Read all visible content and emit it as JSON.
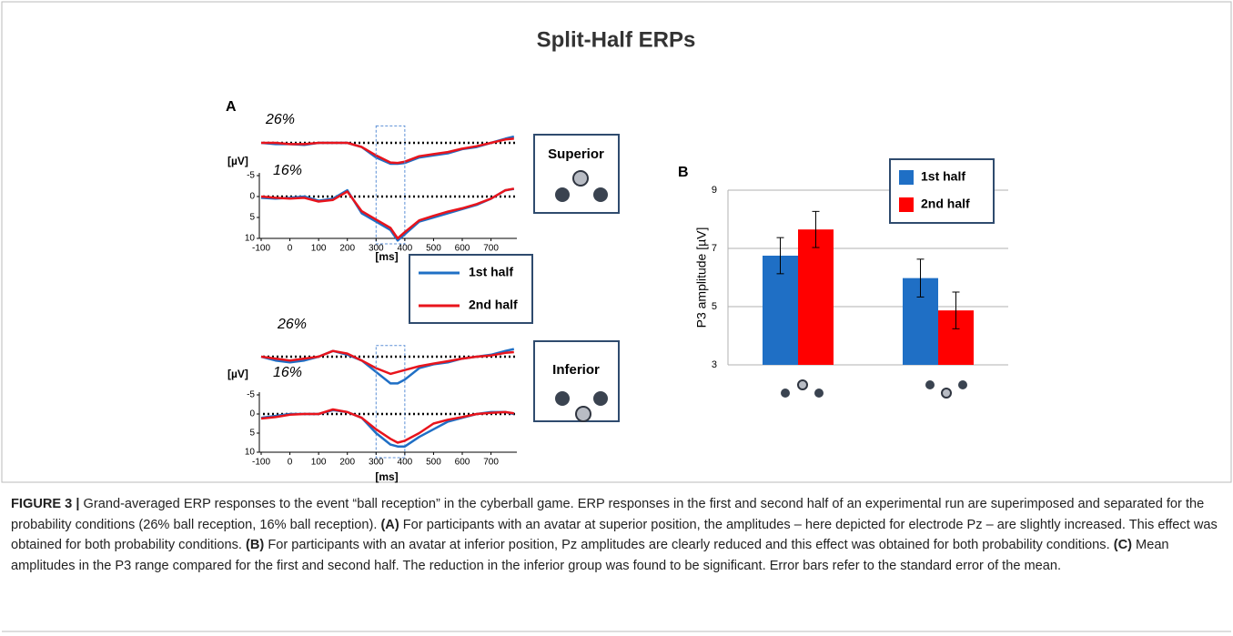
{
  "title": "Split-Half ERPs",
  "panel_labels": [
    "A",
    "B"
  ],
  "icon_labels": [
    "Superior",
    "Inferior"
  ],
  "caption": {
    "figure_label": "FIGURE 3 |",
    "intro": "Grand-averaged ERP responses to the event “ball reception” in the cyberball game. ERP responses in the first and second half of an experimental run are superimposed and separated for the probability conditions (26% ball reception, 16% ball reception).",
    "items": [
      {
        "label": "(A)",
        "text": "For participants with an avatar at superior position, the amplitudes – here depicted for electrode Pz – are slightly increased. This effect was obtained for both probability conditions."
      },
      {
        "label": "(B)",
        "text": "For participants with an avatar at inferior position, Pz amplitudes are clearly reduced and this effect was obtained for both probability conditions."
      },
      {
        "label": "(C)",
        "text": "Mean amplitudes in the P3 range compared for the first and second half. The reduction in the inferior group was found to be significant. Error bars refer to the standard error of the mean."
      }
    ]
  },
  "chart_data": [
    {
      "type": "line",
      "label": "26%",
      "x": [
        -100,
        -50,
        0,
        50,
        100,
        150,
        200,
        250,
        300,
        350,
        375,
        400,
        450,
        500,
        550,
        600,
        650,
        700,
        750,
        780
      ],
      "series": [
        {
          "color": "#1f6fc5",
          "values": [
            0,
            0.3,
            0.3,
            0.5,
            0,
            0,
            0,
            1,
            3.5,
            5,
            5,
            4.8,
            3.5,
            3,
            2.5,
            1.5,
            1,
            0,
            -1,
            -1.5
          ]
        },
        {
          "color": "#e8141c",
          "values": [
            0,
            0,
            0.3,
            0.3,
            0,
            0,
            0,
            1,
            3,
            4.7,
            4.8,
            4.5,
            3.2,
            2.7,
            2.2,
            1.4,
            0.8,
            0,
            -0.8,
            -1
          ]
        }
      ],
      "xlim": [
        -100,
        790
      ],
      "ylim": [
        -6,
        10
      ]
    },
    {
      "type": "line",
      "label": "16%",
      "y_label": "[µV]",
      "x_label": "[ms]",
      "x": [
        -100,
        -50,
        0,
        50,
        100,
        150,
        200,
        250,
        300,
        350,
        375,
        400,
        450,
        500,
        550,
        600,
        650,
        700,
        750,
        780
      ],
      "series": [
        {
          "name": "1st half",
          "color": "#1f6fc5",
          "values": [
            0.3,
            0.5,
            0.3,
            0,
            1,
            0.5,
            -1.5,
            4,
            6,
            8,
            10.5,
            9,
            6,
            5,
            4,
            3,
            2,
            0.5,
            -1.5,
            -1.8
          ]
        },
        {
          "name": "2nd half",
          "color": "#e8141c",
          "values": [
            0,
            0.3,
            0.5,
            0.3,
            1.2,
            0.8,
            -1.2,
            3.5,
            5.5,
            7.5,
            10,
            8.5,
            5.7,
            4.6,
            3.6,
            2.8,
            1.8,
            0.5,
            -1.5,
            -1.9
          ]
        }
      ],
      "xlim": [
        -100,
        790
      ],
      "ylim": [
        -6,
        10
      ],
      "xticks": [
        -100,
        0,
        100,
        200,
        300,
        400,
        500,
        600,
        700
      ],
      "yticks": [
        -5,
        0,
        5,
        10
      ],
      "window": [
        300,
        400
      ]
    },
    {
      "type": "line",
      "label": "26%",
      "x": [
        -100,
        -50,
        0,
        50,
        100,
        150,
        200,
        250,
        300,
        350,
        375,
        400,
        450,
        500,
        550,
        600,
        650,
        700,
        750,
        780
      ],
      "series": [
        {
          "color": "#1f6fc5",
          "values": [
            0,
            1,
            1.5,
            1,
            0,
            -1.5,
            -0.5,
            1,
            4,
            7,
            7,
            6,
            3,
            2,
            1.5,
            0.5,
            0,
            -0.5,
            -1.5,
            -2
          ]
        },
        {
          "color": "#e8141c",
          "values": [
            0,
            0.5,
            1,
            0.5,
            0,
            -1.5,
            -0.8,
            1,
            3,
            4.5,
            4,
            3.5,
            2.5,
            1.8,
            1.2,
            0.5,
            0,
            -0.3,
            -1,
            -1.2
          ]
        }
      ],
      "xlim": [
        -100,
        790
      ],
      "ylim": [
        -6,
        10
      ]
    },
    {
      "type": "line",
      "label": "16%",
      "y_label": "[µV]",
      "x_label": "[ms]",
      "x": [
        -100,
        -50,
        0,
        50,
        100,
        150,
        200,
        250,
        300,
        350,
        375,
        400,
        450,
        500,
        550,
        600,
        650,
        700,
        750,
        780
      ],
      "series": [
        {
          "color": "#1f6fc5",
          "values": [
            1,
            0.5,
            0,
            0,
            0,
            -1,
            -0.5,
            1,
            5,
            8,
            8.5,
            8.5,
            6,
            4,
            2,
            1,
            0,
            -0.5,
            -0.5,
            0
          ]
        },
        {
          "color": "#e8141c",
          "values": [
            1.2,
            0.8,
            0.2,
            0,
            0,
            -1.2,
            -0.5,
            1,
            4,
            6.5,
            7.5,
            7,
            5,
            2.5,
            1.5,
            0.8,
            0,
            -0.3,
            -0.5,
            -0.2
          ]
        }
      ],
      "xlim": [
        -100,
        790
      ],
      "ylim": [
        -6,
        10
      ],
      "xticks": [
        -100,
        0,
        100,
        200,
        300,
        400,
        500,
        600,
        700
      ],
      "yticks": [
        -5,
        0,
        5,
        10
      ],
      "window": [
        300,
        400
      ]
    },
    {
      "type": "bar",
      "y_label": "P3 amplitude [µV]",
      "categories": [
        null,
        null
      ],
      "series": [
        {
          "name": "1st half",
          "color": "#1f6fc5",
          "values": [
            6.75,
            5.98
          ],
          "errors": [
            0.62,
            0.65
          ]
        },
        {
          "name": "2nd half",
          "color": "#ff0000",
          "values": [
            7.65,
            4.87
          ],
          "errors": [
            0.62,
            0.63
          ]
        }
      ],
      "ylim": [
        3,
        9
      ],
      "yticks": [
        3,
        5,
        7,
        9
      ],
      "grid": true
    }
  ]
}
